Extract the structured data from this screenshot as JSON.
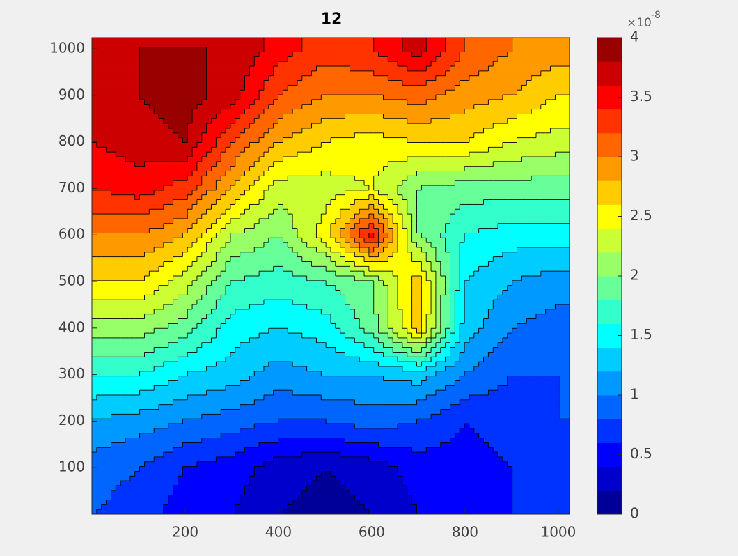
{
  "chart_data": {
    "type": "contourf",
    "title": "12",
    "x": [
      0,
      100,
      200,
      300,
      400,
      500,
      600,
      700,
      800,
      900,
      1000
    ],
    "y": [
      0,
      100,
      200,
      300,
      400,
      500,
      600,
      700,
      800,
      900,
      1000
    ],
    "z": [
      [
        0.8,
        0.7,
        0.5,
        0.4,
        0.2,
        0.1,
        0.2,
        0.4,
        0.5,
        0.6,
        0.6
      ],
      [
        0.9,
        0.8,
        0.6,
        0.5,
        0.3,
        0.2,
        0.3,
        0.5,
        0.5,
        0.6,
        0.7
      ],
      [
        1.2,
        1.1,
        1.0,
        0.9,
        0.8,
        0.8,
        0.9,
        0.8,
        0.6,
        0.7,
        0.8
      ],
      [
        1.6,
        1.6,
        1.4,
        1.3,
        1.1,
        1.2,
        1.2,
        1.3,
        1.0,
        0.8,
        0.8
      ],
      [
        2.1,
        2.1,
        1.9,
        1.5,
        1.4,
        1.5,
        1.9,
        2.7,
        1.3,
        1.0,
        0.9
      ],
      [
        2.6,
        2.6,
        2.3,
        1.8,
        1.7,
        1.8,
        2.0,
        2.7,
        1.4,
        1.2,
        1.1
      ],
      [
        3.0,
        3.0,
        2.8,
        2.2,
        2.0,
        2.5,
        3.5,
        2.0,
        1.6,
        1.5,
        1.5
      ],
      [
        3.4,
        3.5,
        3.3,
        2.8,
        2.3,
        2.3,
        2.4,
        2.0,
        1.9,
        1.9,
        1.9
      ],
      [
        3.6,
        3.7,
        3.8,
        3.2,
        2.8,
        2.6,
        2.5,
        2.6,
        2.6,
        2.4,
        2.3
      ],
      [
        3.8,
        3.8,
        3.9,
        3.7,
        3.2,
        3.0,
        3.0,
        3.1,
        2.9,
        2.8,
        2.6
      ],
      [
        3.8,
        3.8,
        3.8,
        3.8,
        3.5,
        3.3,
        3.4,
        3.7,
        3.2,
        3.0,
        2.9
      ]
    ],
    "level_step": 0.2,
    "colormap": "jet",
    "xlim": [
      0,
      1024
    ],
    "ylim": [
      0,
      1024
    ],
    "xticks": [
      200,
      400,
      600,
      800,
      1000
    ],
    "yticks": [
      100,
      200,
      300,
      400,
      500,
      600,
      700,
      800,
      900,
      1000
    ],
    "colorbar": {
      "clim": [
        0,
        4
      ],
      "ticks": [
        0,
        0.5,
        1,
        1.5,
        2,
        2.5,
        3,
        3.5,
        4
      ],
      "exponent_base": "×10",
      "exponent": "-8"
    }
  }
}
